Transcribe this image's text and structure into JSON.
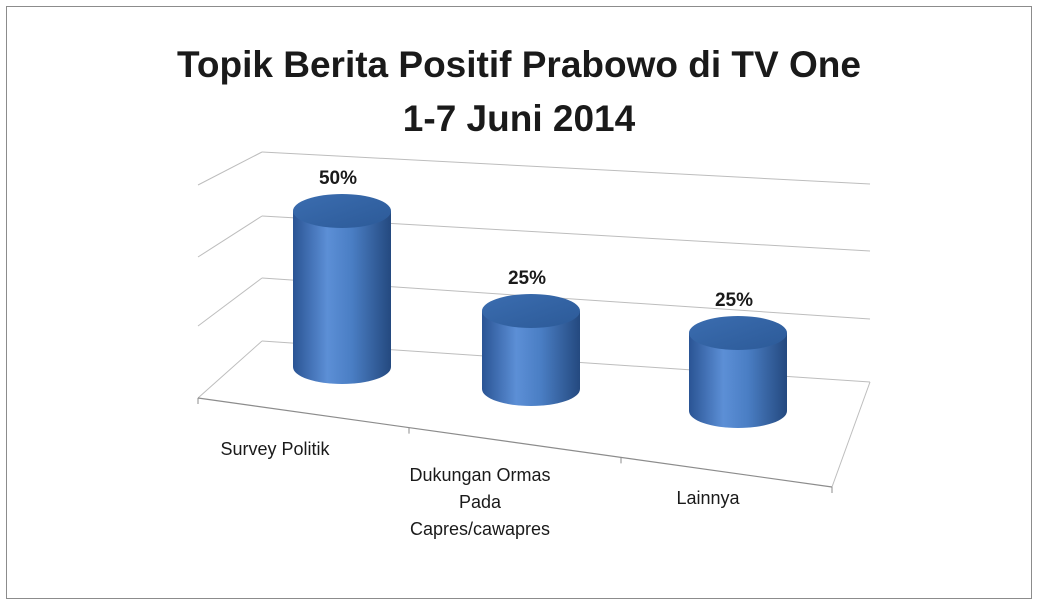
{
  "chart_data": {
    "type": "bar",
    "title": "Topik Berita Positif Prabowo di TV One",
    "subtitle": "1-7 Juni 2014",
    "categories": [
      "Survey Politik",
      "Dukungan Ormas Pada Capres/cawapres",
      "Lainnya"
    ],
    "category_lines": [
      [
        "Survey Politik"
      ],
      [
        "Dukungan Ormas",
        "Pada",
        "Capres/cawapres"
      ],
      [
        "Lainnya"
      ]
    ],
    "values": [
      50,
      25,
      25
    ],
    "data_labels": [
      "50%",
      "25%",
      "25%"
    ],
    "unit": "%",
    "ylim": [
      0,
      60
    ],
    "grid": true,
    "legend": "none",
    "bar_color": "#4a7ec4",
    "bar_shape": "3d-cylinder"
  }
}
